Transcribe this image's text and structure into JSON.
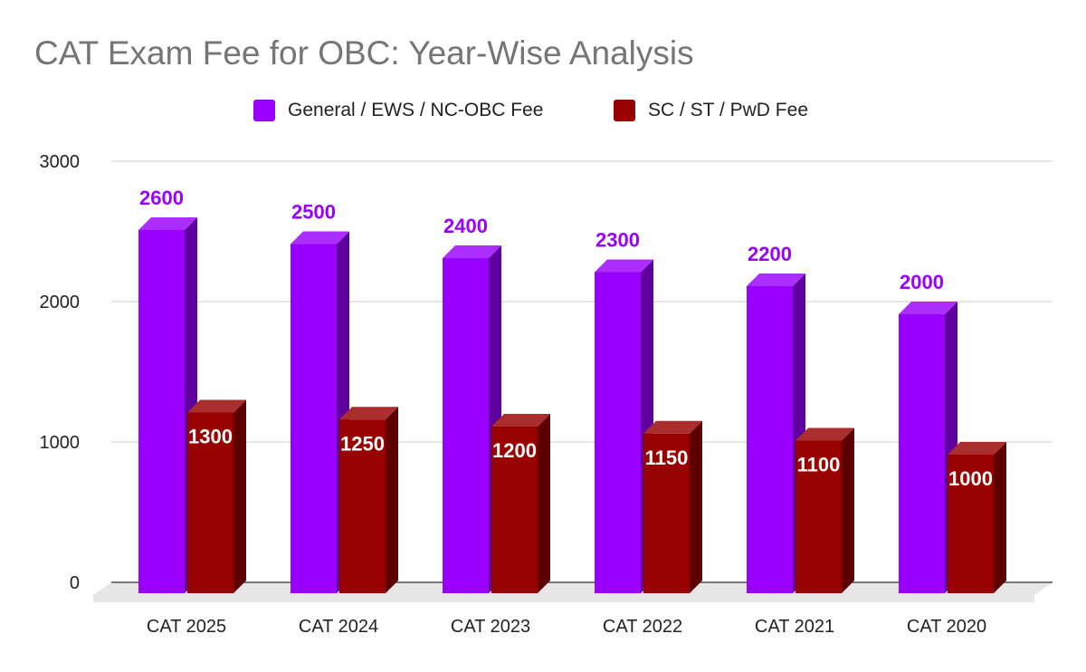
{
  "chart_data": {
    "type": "bar",
    "title": "CAT Exam Fee for OBC: Year-Wise Analysis",
    "categories": [
      "CAT 2025",
      "CAT 2024",
      "CAT 2023",
      "CAT 2022",
      "CAT 2021",
      "CAT 2020"
    ],
    "series": [
      {
        "name": "General / EWS / NC-OBC Fee",
        "color": "#9900ff",
        "values": [
          2600,
          2500,
          2400,
          2300,
          2200,
          2000
        ]
      },
      {
        "name": "SC / ST / PwD Fee",
        "color": "#990000",
        "values": [
          1300,
          1250,
          1200,
          1150,
          1100,
          1000
        ]
      }
    ],
    "ylim": [
      0,
      3000
    ],
    "yticks": [
      0,
      1000,
      2000,
      3000
    ],
    "grid": true,
    "legend_position": "top",
    "style": "3d-column"
  }
}
